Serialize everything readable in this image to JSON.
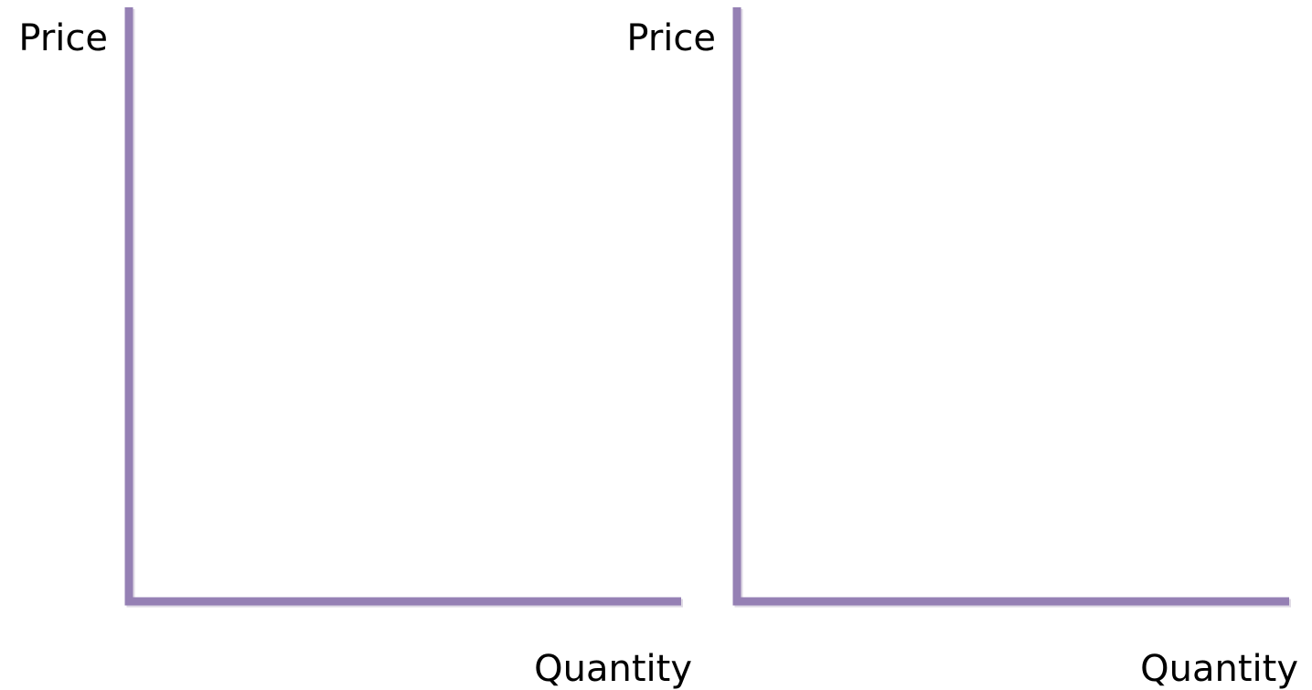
{
  "panels": [
    {
      "y_label": "Price",
      "x_label": "Quantity"
    },
    {
      "y_label": "Price",
      "x_label": "Quantity"
    }
  ]
}
